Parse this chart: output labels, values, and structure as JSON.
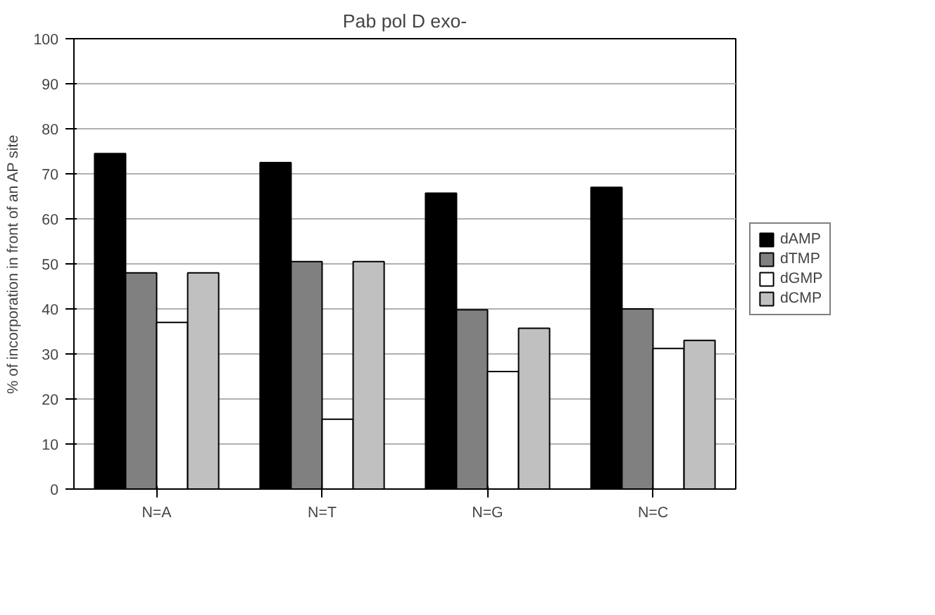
{
  "chart_data": {
    "type": "bar",
    "title": "Pab pol D exo-",
    "ylabel": "% of incorporation in front of an AP site",
    "categories": [
      "N=A",
      "N=T",
      "N=G",
      "N=C"
    ],
    "series": [
      {
        "name": "dAMP",
        "color": "#000000",
        "values": [
          74.5,
          72.5,
          65.7,
          67
        ]
      },
      {
        "name": "dTMP",
        "color": "#808080",
        "values": [
          48,
          50.5,
          39.8,
          40
        ]
      },
      {
        "name": "dGMP",
        "color": "#ffffff",
        "values": [
          37,
          15.5,
          26.1,
          31.2
        ]
      },
      {
        "name": "dCMP",
        "color": "#c0c0c0",
        "values": [
          48,
          50.5,
          35.7,
          33
        ]
      }
    ],
    "ylim": [
      0,
      100
    ],
    "yticks": [
      0,
      10,
      20,
      30,
      40,
      50,
      60,
      70,
      80,
      90,
      100
    ],
    "grid": "y",
    "legend": "right"
  }
}
